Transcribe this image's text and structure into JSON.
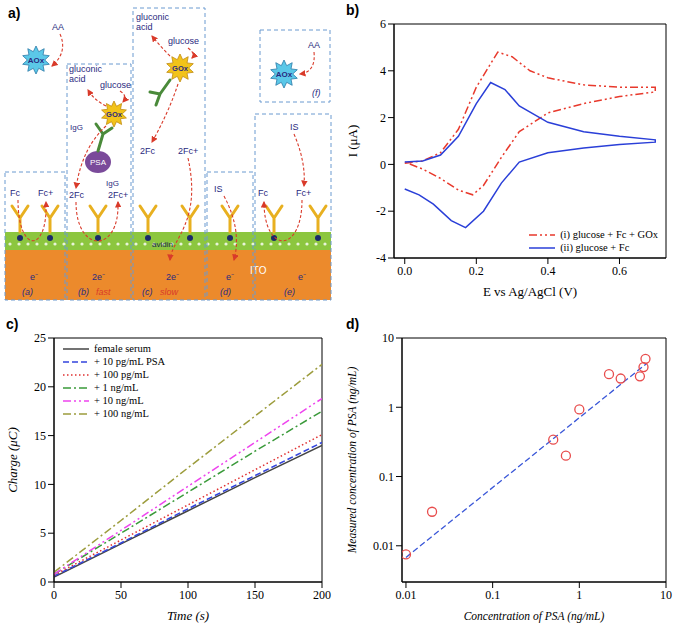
{
  "diagram": {
    "title": "a)",
    "electrode": "ITO",
    "layer": "avidin",
    "scavenger": {
      "enzyme": "AOx",
      "substrate": "AA"
    },
    "sections": [
      {
        "tag": "(a)",
        "mediator": [
          "Fc",
          "Fc+"
        ],
        "electrons": "e⁻"
      },
      {
        "tag": "(b)",
        "speed": "fast",
        "capture": "IgG",
        "antigen": "PSA",
        "antibody": "IgG",
        "enzyme": "GOx",
        "substrate": "glucose",
        "product": "gluconic acid",
        "mediator": [
          "2Fc",
          "2Fc+"
        ],
        "electrons": "2e⁻"
      },
      {
        "tag": "(c)",
        "speed": "slow",
        "enzyme": "GOx",
        "substrate": "glucose",
        "product": "gluconic acid",
        "mediator": [
          "2Fc",
          "2Fc+"
        ],
        "electrons": "2e⁻"
      },
      {
        "tag": "(d)",
        "interferent": "IS",
        "electrons": "e⁻"
      },
      {
        "tag": "(e)",
        "interferent": "IS",
        "mediator": [
          "Fc",
          "Fc+"
        ],
        "electrons": "e⁻"
      },
      {
        "tag": "(f)",
        "enzyme": "AOx",
        "substrate": "AA"
      }
    ]
  },
  "chart_data": [
    {
      "type": "line",
      "title": "b)",
      "x_label": "E vs Ag/AgCl (V)",
      "y_label": "I (μA)",
      "xlim": [
        -0.03,
        0.73
      ],
      "xticks": [
        {
          "value": 0,
          "label": "0.0"
        },
        0.2,
        0.4,
        0.6
      ],
      "ylim": [
        -4,
        6
      ],
      "yticks": [
        -4,
        -2,
        0,
        2,
        4,
        6
      ],
      "legend": "lower right",
      "series": [
        {
          "name": "(i) glucose + Fc + GOx",
          "color": "#e8392c",
          "line_style": "dashdotdot",
          "x": [
            0,
            0.05,
            0.1,
            0.15,
            0.2,
            0.26,
            0.3,
            0.35,
            0.4,
            0.5,
            0.6,
            0.7,
            0.7,
            0.6,
            0.5,
            0.4,
            0.32,
            0.27,
            0.22,
            0.19,
            0.15,
            0.1,
            0.05,
            0
          ],
          "values": [
            0.05,
            0.15,
            0.5,
            1.5,
            3.3,
            4.8,
            4.6,
            4.0,
            3.7,
            3.4,
            3.3,
            3.3,
            3.1,
            2.9,
            2.6,
            2.2,
            1.4,
            0.3,
            -0.9,
            -1.3,
            -1.1,
            -0.6,
            -0.2,
            0.1
          ]
        },
        {
          "name": "(ii) glucose + Fc",
          "color": "#2a3fd8",
          "line_style": "solid",
          "x": [
            0,
            0.05,
            0.1,
            0.15,
            0.2,
            0.24,
            0.28,
            0.32,
            0.4,
            0.5,
            0.6,
            0.7,
            0.7,
            0.6,
            0.5,
            0.4,
            0.32,
            0.27,
            0.22,
            0.17,
            0.13,
            0.08,
            0.04,
            0
          ],
          "values": [
            0.1,
            0.15,
            0.4,
            1.2,
            2.6,
            3.5,
            3.2,
            2.5,
            1.8,
            1.4,
            1.2,
            1.05,
            0.95,
            0.85,
            0.7,
            0.5,
            0.1,
            -0.8,
            -2.0,
            -2.7,
            -2.4,
            -1.7,
            -1.3,
            -1.05
          ]
        }
      ]
    },
    {
      "type": "line",
      "title": "c)",
      "x_label": "Time (s)",
      "y_label": "Charge (μC)",
      "x": [
        0,
        50,
        100,
        150,
        200
      ],
      "xlim": [
        0,
        200
      ],
      "xticks": [
        0,
        50,
        100,
        150,
        200
      ],
      "ylim": [
        0,
        25
      ],
      "yticks": [
        0,
        5,
        10,
        15,
        20,
        25
      ],
      "legend": "upper left",
      "series": [
        {
          "name": "female serum",
          "color": "#444444",
          "line_style": "solid",
          "values": [
            0.5,
            3.9,
            7.3,
            10.7,
            14.0
          ]
        },
        {
          "name": "+ 10 pg/mL PSA",
          "color": "#3344dd",
          "line_style": "dashed",
          "values": [
            0.6,
            4.0,
            7.5,
            10.9,
            14.3
          ]
        },
        {
          "name": "+ 100 pg/mL",
          "color": "#e03030",
          "line_style": "dotted",
          "values": [
            0.7,
            4.3,
            7.9,
            11.5,
            15.1
          ]
        },
        {
          "name": "+ 1 ng/mL",
          "color": "#3a9a3a",
          "line_style": "dashdot",
          "values": [
            0.8,
            5.0,
            9.2,
            13.4,
            17.5
          ]
        },
        {
          "name": "+ 10 ng/mL",
          "color": "#ee44ee",
          "line_style": "dashdotdot",
          "values": [
            0.8,
            5.3,
            9.8,
            14.3,
            18.8
          ]
        },
        {
          "name": "+ 100 ng/mL",
          "color": "#9c9c3c",
          "line_style": "dashdot",
          "values": [
            1.0,
            6.3,
            11.7,
            17.0,
            22.3
          ]
        }
      ]
    },
    {
      "type": "scatter",
      "title": "d)",
      "log": true,
      "x_label": "Concentration of PSA (ng/mL)",
      "y_label": "Measured concentration of PSA (ng/mL)",
      "xlim": [
        0.009,
        10
      ],
      "xticks": [
        0.01,
        0.1,
        1,
        10
      ],
      "ylim": [
        0.003,
        10
      ],
      "yticks": [
        0.01,
        0.1,
        1,
        10
      ],
      "x": [
        0.01,
        0.02,
        0.5,
        0.7,
        1.0,
        2.2,
        3.0,
        5.0,
        5.5,
        5.8
      ],
      "values": [
        0.0075,
        0.031,
        0.34,
        0.2,
        0.93,
        3.0,
        2.6,
        2.8,
        3.8,
        5.0
      ],
      "color": "#e84c4c",
      "marker": "open_circle",
      "fit": {
        "x": [
          0.01,
          6
        ],
        "values": [
          0.0068,
          4.3
        ],
        "color": "#3a57d8",
        "line_style": "dashed"
      }
    }
  ]
}
